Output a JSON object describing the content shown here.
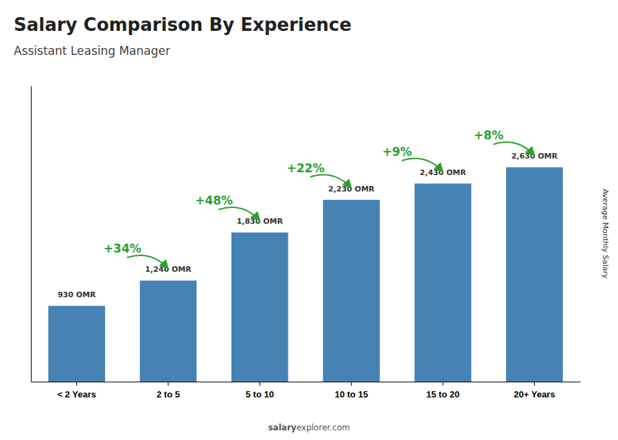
{
  "chart_data": {
    "type": "bar",
    "title": "Salary Comparison By Experience",
    "subtitle": "Assistant Leasing Manager",
    "ylabel": "Average Monthly Salary",
    "categories": [
      "< 2 Years",
      "2 to 5",
      "5 to 10",
      "10 to 15",
      "15 to 20",
      "20+ Years"
    ],
    "values": [
      930,
      1240,
      1830,
      2230,
      2430,
      2630
    ],
    "value_labels": [
      "930 OMR",
      "1,240 OMR",
      "1,830 OMR",
      "2,230 OMR",
      "2,430 OMR",
      "2,630 OMR"
    ],
    "data_labels": true,
    "annotations": [
      "+34%",
      "+48%",
      "+22%",
      "+9%",
      "+8%"
    ],
    "watermark": [
      "salary",
      "explorer.com"
    ],
    "ylim": [
      0,
      3629.4
    ],
    "yticks": [],
    "tick_labels": "x"
  }
}
